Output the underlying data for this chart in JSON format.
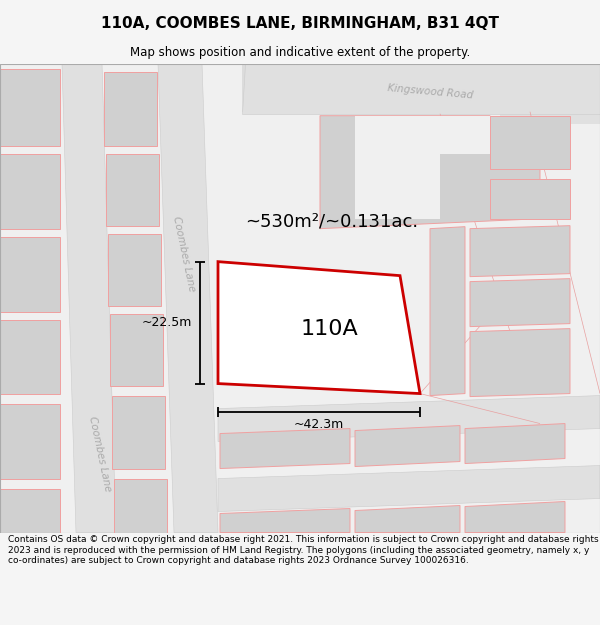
{
  "title": "110A, COOMBES LANE, BIRMINGHAM, B31 4QT",
  "subtitle": "Map shows position and indicative extent of the property.",
  "footer": "Contains OS data © Crown copyright and database right 2021. This information is subject to Crown copyright and database rights 2023 and is reproduced with the permission of HM Land Registry. The polygons (including the associated geometry, namely x, y co-ordinates) are subject to Crown copyright and database rights 2023 Ordnance Survey 100026316.",
  "area_label": "~530m²/~0.131ac.",
  "label_110A": "110A",
  "dim_width": "~42.3m",
  "dim_height": "~22.5m",
  "road_label_upper": "Coombes Lane",
  "road_label_lower": "Coombes Lane",
  "road_label_kingswood": "Kingswood Road",
  "bg_color": "#f5f5f5",
  "map_bg": "#f0f0f0",
  "road_fill": "#e2e2e2",
  "bld_color": "#d0d0d0",
  "bld_red": "#f0a0a0",
  "red_stroke": "#cc0000",
  "title_fontsize": 11,
  "subtitle_fontsize": 8.5,
  "footer_fontsize": 6.5,
  "area_fontsize": 13,
  "label_fontsize": 16,
  "dim_fontsize": 9,
  "road_label_fontsize": 7.5
}
